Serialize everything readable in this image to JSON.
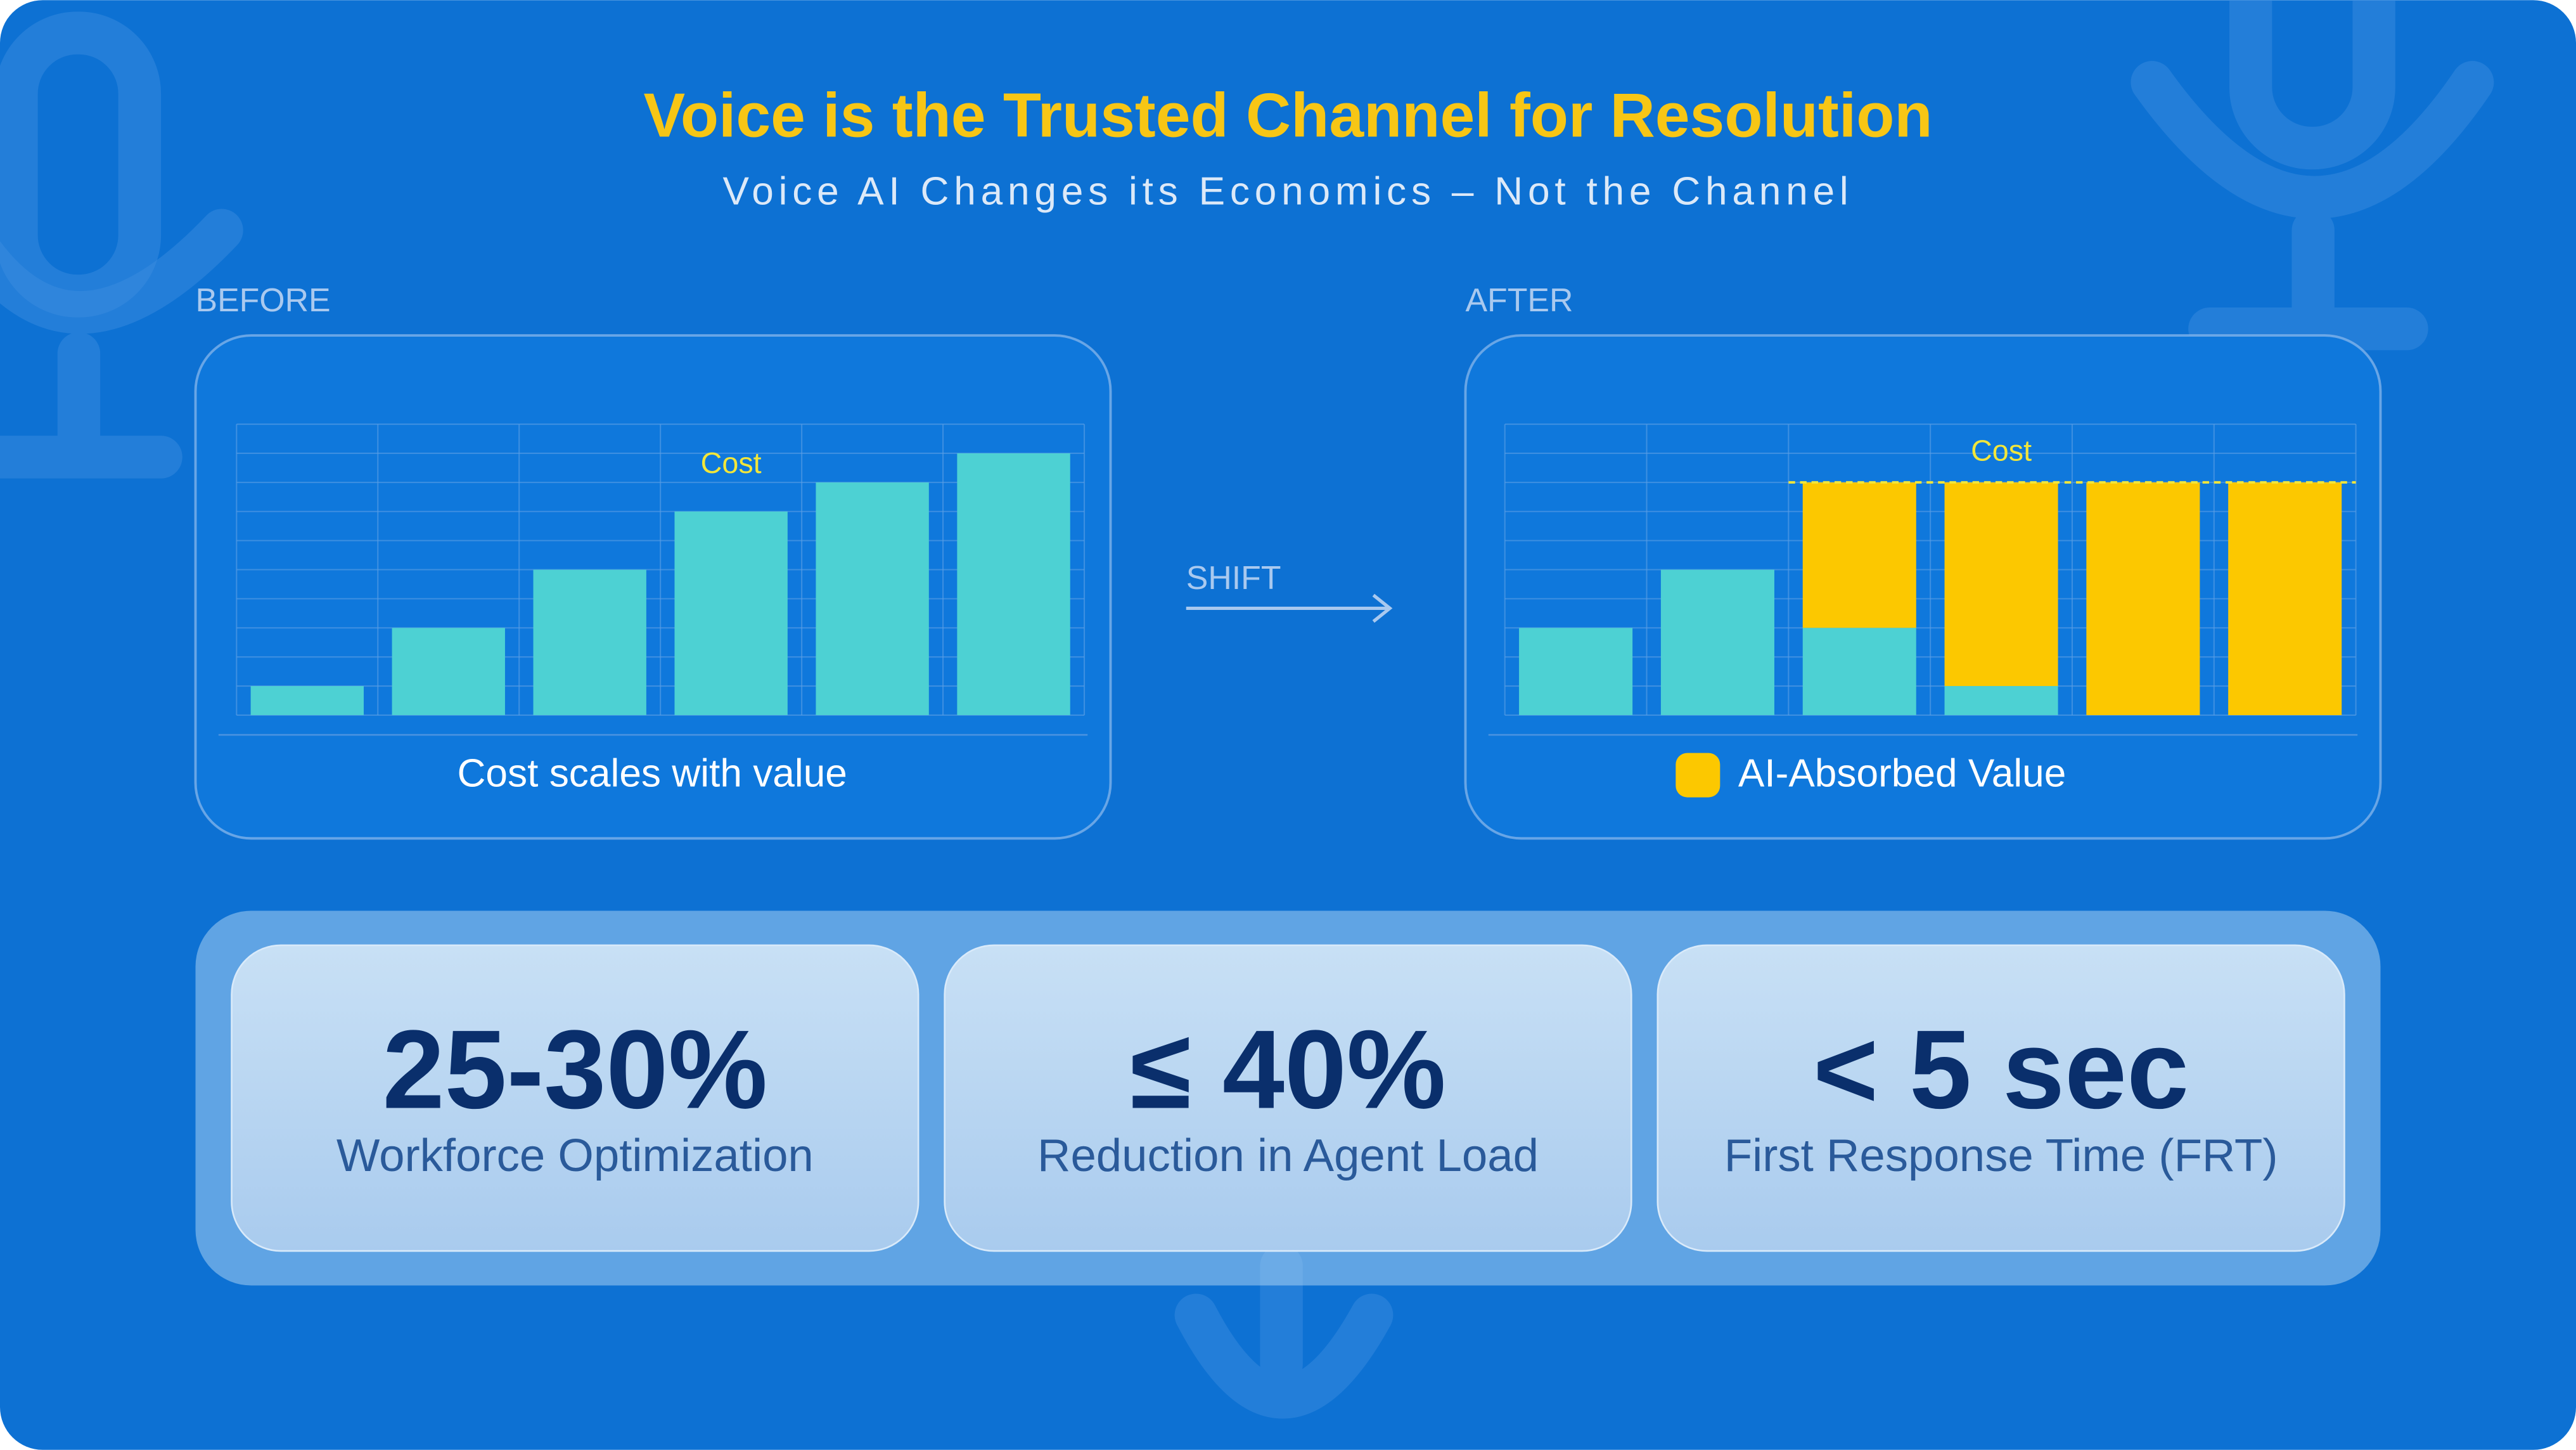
{
  "header": {
    "title": "Voice is the Trusted Channel for Resolution",
    "subtitle": "Voice AI Changes its Economics – Not the Channel"
  },
  "shift_label": "SHIFT",
  "chart_data": [
    {
      "type": "bar",
      "section": "BEFORE",
      "annotation": "Cost",
      "caption": "Cost scales with value",
      "categories": [
        null,
        null,
        null,
        null,
        null,
        null
      ],
      "values": [
        1,
        3,
        5,
        7,
        8,
        9
      ],
      "color": "#4dd1d3",
      "ylim": [
        0,
        10
      ],
      "yticks": [
        0,
        1,
        2,
        3,
        4,
        5,
        6,
        7,
        8,
        9,
        10
      ],
      "grid": true
    },
    {
      "type": "stacked_bar",
      "section": "AFTER",
      "categories": [
        null,
        null,
        null,
        null,
        null,
        null
      ],
      "series": [
        {
          "color": "#4dd1d3",
          "values": [
            3,
            5,
            3,
            1,
            0,
            0
          ]
        },
        {
          "name": "AI-Absorbed Value",
          "color": "#fcc800",
          "values": [
            0,
            0,
            5,
            7,
            8,
            8
          ]
        }
      ],
      "reference_line": {
        "label": "Cost",
        "value": 8
      },
      "ylim": [
        0,
        10
      ],
      "yticks": [
        0,
        1,
        2,
        3,
        4,
        5,
        6,
        7,
        8,
        9,
        10
      ],
      "grid": true
    }
  ],
  "stats": [
    {
      "value": "25-30%",
      "label": "Workforce Optimization"
    },
    {
      "value": "≤ 40%",
      "label": "Reduction in Agent Load"
    },
    {
      "value": "< 5 sec",
      "label": "First Response Time (FRT)"
    }
  ]
}
